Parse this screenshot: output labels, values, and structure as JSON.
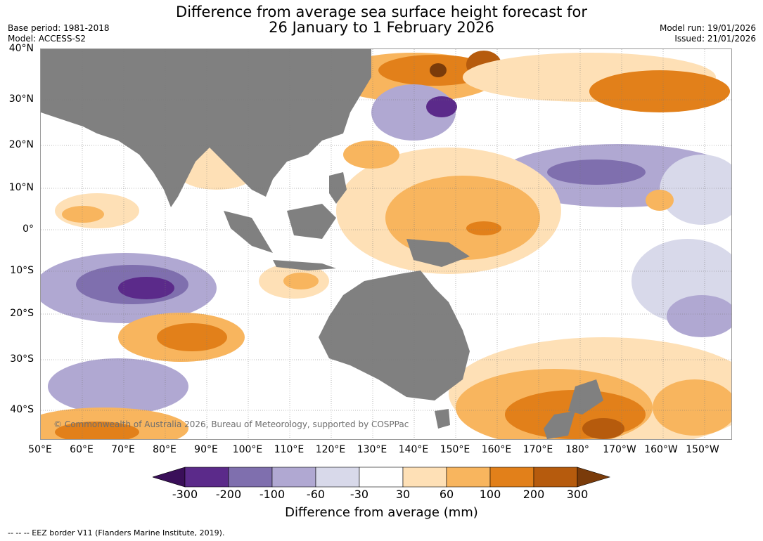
{
  "header": {
    "title_line1": "Difference from average sea surface height forecast for",
    "title_line2": "26 January to 1 February 2026",
    "base_period": "Base period: 1981-2018",
    "model": "Model: ACCESS-S2",
    "model_run": "Model run: 19/01/2026",
    "issued": "Issued: 21/01/2026"
  },
  "map": {
    "lat_labels": [
      "40°N",
      "30°N",
      "20°N",
      "10°N",
      "0°",
      "10°S",
      "20°S",
      "30°S",
      "40°S"
    ],
    "lon_labels": [
      "50°E",
      "60°E",
      "70°E",
      "80°E",
      "90°E",
      "100°E",
      "110°E",
      "120°E",
      "130°E",
      "140°E",
      "150°E",
      "160°E",
      "170°E",
      "180°",
      "170°W",
      "160°W",
      "150°W"
    ],
    "copyright": "© Commonwealth of Australia 2026, Bureau of Meteorology, supported by COSPPac",
    "land_color": "#808080"
  },
  "colorbar": {
    "labels": [
      "-300",
      "-200",
      "-100",
      "-60",
      "-30",
      "30",
      "60",
      "100",
      "200",
      "300"
    ],
    "colors": [
      "#3a0f59",
      "#5b2a8a",
      "#7f6fae",
      "#b0a8d2",
      "#d8d9ea",
      "#ffffff",
      "#fee0b6",
      "#f8b55e",
      "#e2801a",
      "#b65b0d",
      "#7a3b0a"
    ],
    "title": "Difference from average (mm)"
  },
  "footer": {
    "eez_note": "--  --  -- EEZ border V11 (Flanders Marine Institute, 2019)."
  }
}
